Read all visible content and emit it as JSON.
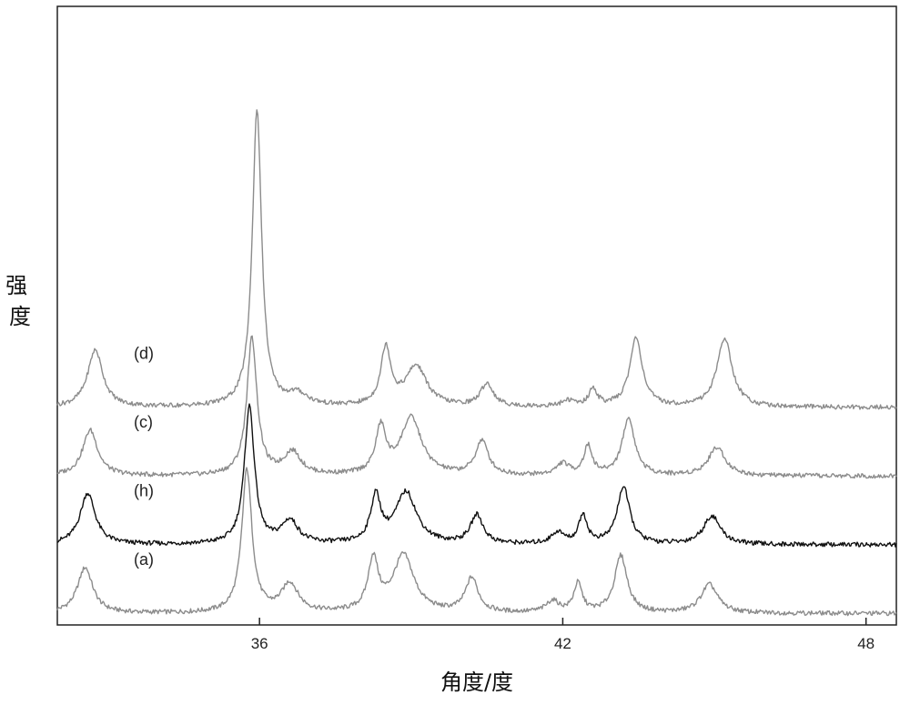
{
  "chart_data": {
    "type": "line",
    "xlabel": "角度/度",
    "ylabel": "强度",
    "xlim": [
      32.0,
      48.6
    ],
    "ylim": [
      0,
      100
    ],
    "x_ticks": [
      36,
      42,
      48
    ],
    "grid": false,
    "series": [
      {
        "name": "(a)",
        "color": "#8c8c8c",
        "offset": 2,
        "peaks": [
          {
            "x": 32.55,
            "h": 8,
            "w": 0.18
          },
          {
            "x": 35.75,
            "h": 25,
            "w": 0.12
          },
          {
            "x": 36.6,
            "h": 5,
            "w": 0.2
          },
          {
            "x": 38.25,
            "h": 9,
            "w": 0.12
          },
          {
            "x": 38.85,
            "h": 10,
            "w": 0.25
          },
          {
            "x": 40.2,
            "h": 6,
            "w": 0.15
          },
          {
            "x": 41.8,
            "h": 2,
            "w": 0.15
          },
          {
            "x": 42.3,
            "h": 5,
            "w": 0.1
          },
          {
            "x": 43.15,
            "h": 10,
            "w": 0.15
          },
          {
            "x": 44.9,
            "h": 5,
            "w": 0.2
          }
        ]
      },
      {
        "name": "(h)",
        "color": "#111111",
        "offset": 14,
        "peaks": [
          {
            "x": 32.6,
            "h": 9,
            "w": 0.18
          },
          {
            "x": 35.8,
            "h": 24,
            "w": 0.12
          },
          {
            "x": 36.6,
            "h": 4,
            "w": 0.2
          },
          {
            "x": 38.3,
            "h": 8,
            "w": 0.12
          },
          {
            "x": 38.9,
            "h": 9,
            "w": 0.25
          },
          {
            "x": 40.3,
            "h": 5,
            "w": 0.15
          },
          {
            "x": 41.9,
            "h": 2,
            "w": 0.15
          },
          {
            "x": 42.4,
            "h": 5,
            "w": 0.1
          },
          {
            "x": 43.2,
            "h": 10,
            "w": 0.15
          },
          {
            "x": 44.95,
            "h": 5,
            "w": 0.2
          }
        ]
      },
      {
        "name": "(c)",
        "color": "#8c8c8c",
        "offset": 26,
        "peaks": [
          {
            "x": 32.65,
            "h": 8,
            "w": 0.18
          },
          {
            "x": 35.85,
            "h": 24,
            "w": 0.12
          },
          {
            "x": 36.65,
            "h": 4,
            "w": 0.2
          },
          {
            "x": 38.4,
            "h": 8,
            "w": 0.12
          },
          {
            "x": 39.0,
            "h": 10,
            "w": 0.25
          },
          {
            "x": 40.4,
            "h": 6,
            "w": 0.15
          },
          {
            "x": 42.0,
            "h": 2,
            "w": 0.15
          },
          {
            "x": 42.5,
            "h": 5,
            "w": 0.1
          },
          {
            "x": 43.3,
            "h": 10,
            "w": 0.15
          },
          {
            "x": 45.05,
            "h": 5,
            "w": 0.2
          }
        ]
      },
      {
        "name": "(d)",
        "color": "#8c8c8c",
        "offset": 38,
        "peaks": [
          {
            "x": 32.75,
            "h": 10,
            "w": 0.18
          },
          {
            "x": 35.95,
            "h": 52,
            "w": 0.11
          },
          {
            "x": 36.75,
            "h": 2,
            "w": 0.25
          },
          {
            "x": 38.5,
            "h": 10,
            "w": 0.12
          },
          {
            "x": 39.1,
            "h": 7,
            "w": 0.25
          },
          {
            "x": 40.5,
            "h": 4,
            "w": 0.15
          },
          {
            "x": 42.1,
            "h": 1,
            "w": 0.15
          },
          {
            "x": 42.6,
            "h": 3,
            "w": 0.1
          },
          {
            "x": 43.45,
            "h": 12,
            "w": 0.15
          },
          {
            "x": 45.2,
            "h": 12,
            "w": 0.18
          }
        ]
      }
    ]
  }
}
